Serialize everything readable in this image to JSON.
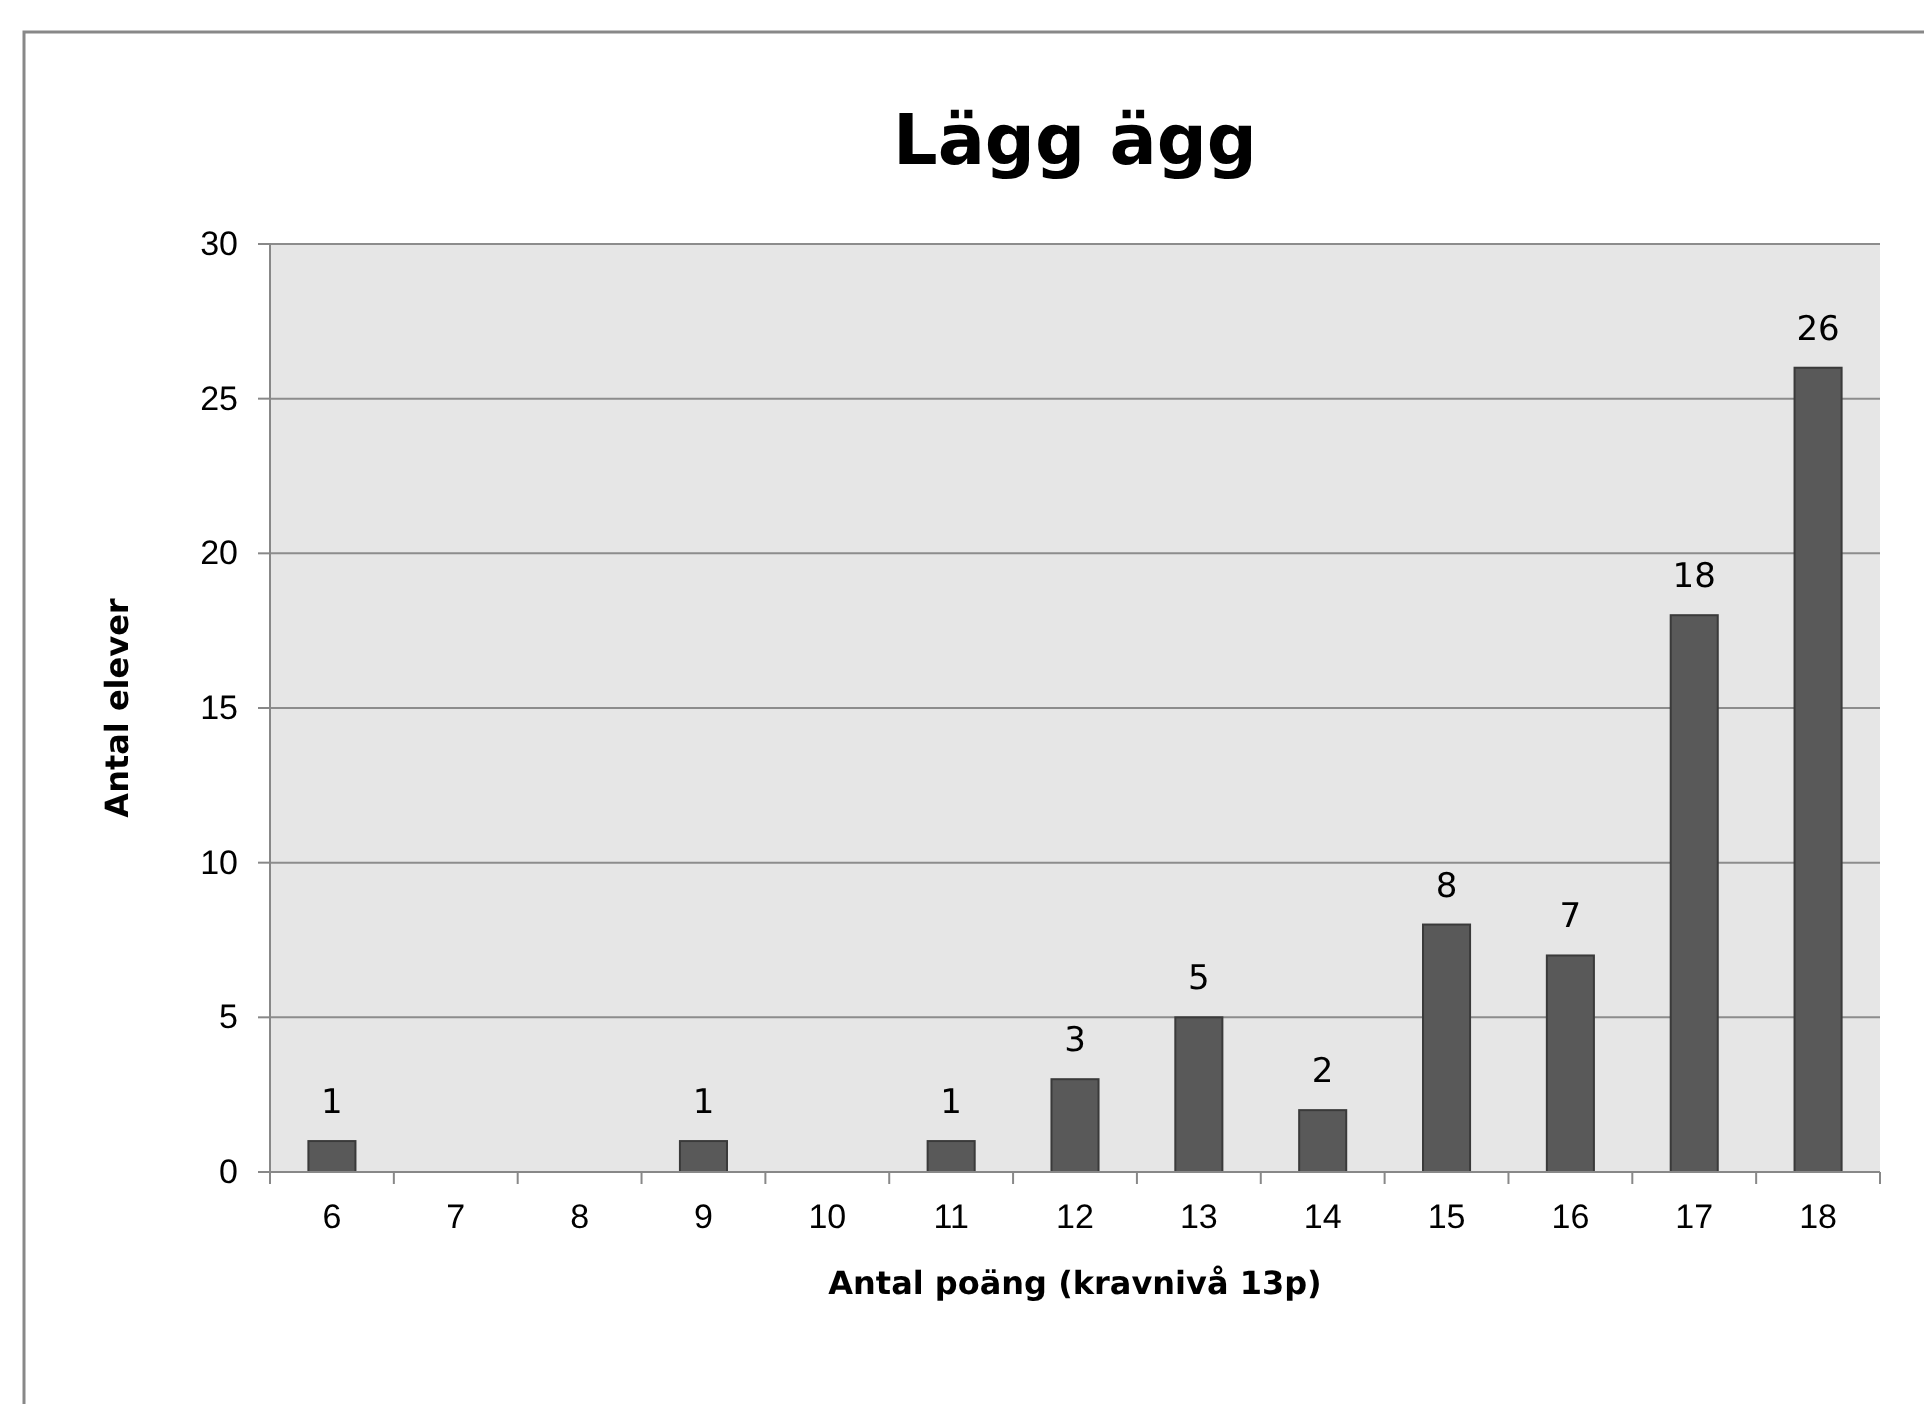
{
  "chart_data": {
    "type": "bar",
    "title": "Lägg ägg",
    "xlabel": "Antal poäng (kravnivå 13p)",
    "ylabel": "Antal elever",
    "categories": [
      "6",
      "7",
      "8",
      "9",
      "10",
      "11",
      "12",
      "13",
      "14",
      "15",
      "16",
      "17",
      "18"
    ],
    "values": [
      1,
      0,
      0,
      1,
      0,
      1,
      3,
      5,
      2,
      8,
      7,
      18,
      26
    ],
    "value_labels": [
      "1",
      null,
      null,
      "1",
      null,
      "1",
      "3",
      "5",
      "2",
      "8",
      "7",
      "18",
      "26"
    ],
    "color": "#595959",
    "ylim": [
      0,
      30
    ],
    "yticks": [
      0,
      5,
      10,
      15,
      20,
      25,
      30
    ],
    "grid": "y"
  }
}
